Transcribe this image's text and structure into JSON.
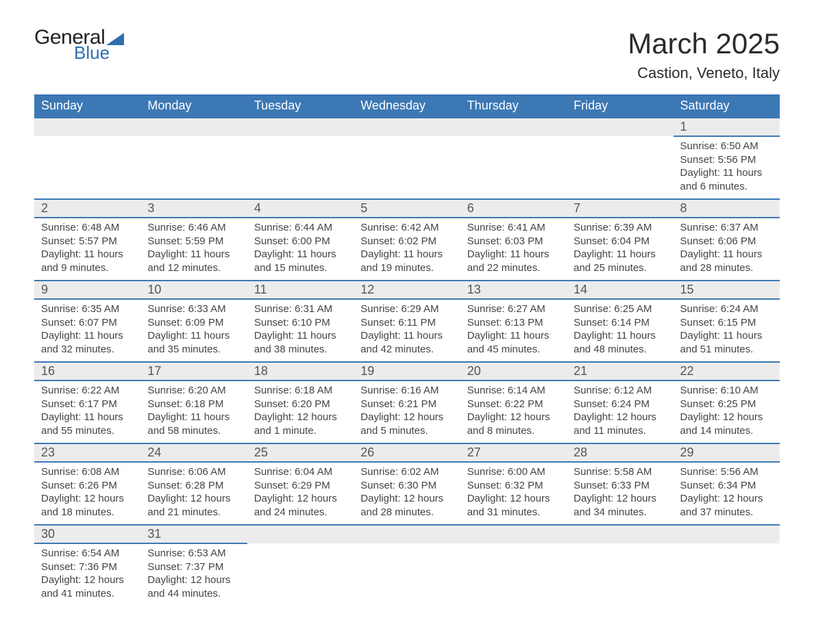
{
  "brand": {
    "text1": "General",
    "text2": "Blue",
    "accent": "#2f6eb0"
  },
  "title": "March 2025",
  "location": "Castion, Veneto, Italy",
  "colors": {
    "header_bg": "#3c78b4",
    "header_text": "#ffffff",
    "daynum_bg": "#ececec",
    "border": "#3c78b4",
    "body_text": "#444444",
    "title_text": "#2b2b2b",
    "background": "#ffffff"
  },
  "fonts": {
    "title_size_pt": 32,
    "location_size_pt": 17,
    "header_size_pt": 14,
    "daynum_size_pt": 14,
    "body_size_pt": 11
  },
  "weekday_labels": [
    "Sunday",
    "Monday",
    "Tuesday",
    "Wednesday",
    "Thursday",
    "Friday",
    "Saturday"
  ],
  "weeks": [
    [
      null,
      null,
      null,
      null,
      null,
      null,
      {
        "n": "1",
        "sunrise": "6:50 AM",
        "sunset": "5:56 PM",
        "daylight": "11 hours and 6 minutes."
      }
    ],
    [
      {
        "n": "2",
        "sunrise": "6:48 AM",
        "sunset": "5:57 PM",
        "daylight": "11 hours and 9 minutes."
      },
      {
        "n": "3",
        "sunrise": "6:46 AM",
        "sunset": "5:59 PM",
        "daylight": "11 hours and 12 minutes."
      },
      {
        "n": "4",
        "sunrise": "6:44 AM",
        "sunset": "6:00 PM",
        "daylight": "11 hours and 15 minutes."
      },
      {
        "n": "5",
        "sunrise": "6:42 AM",
        "sunset": "6:02 PM",
        "daylight": "11 hours and 19 minutes."
      },
      {
        "n": "6",
        "sunrise": "6:41 AM",
        "sunset": "6:03 PM",
        "daylight": "11 hours and 22 minutes."
      },
      {
        "n": "7",
        "sunrise": "6:39 AM",
        "sunset": "6:04 PM",
        "daylight": "11 hours and 25 minutes."
      },
      {
        "n": "8",
        "sunrise": "6:37 AM",
        "sunset": "6:06 PM",
        "daylight": "11 hours and 28 minutes."
      }
    ],
    [
      {
        "n": "9",
        "sunrise": "6:35 AM",
        "sunset": "6:07 PM",
        "daylight": "11 hours and 32 minutes."
      },
      {
        "n": "10",
        "sunrise": "6:33 AM",
        "sunset": "6:09 PM",
        "daylight": "11 hours and 35 minutes."
      },
      {
        "n": "11",
        "sunrise": "6:31 AM",
        "sunset": "6:10 PM",
        "daylight": "11 hours and 38 minutes."
      },
      {
        "n": "12",
        "sunrise": "6:29 AM",
        "sunset": "6:11 PM",
        "daylight": "11 hours and 42 minutes."
      },
      {
        "n": "13",
        "sunrise": "6:27 AM",
        "sunset": "6:13 PM",
        "daylight": "11 hours and 45 minutes."
      },
      {
        "n": "14",
        "sunrise": "6:25 AM",
        "sunset": "6:14 PM",
        "daylight": "11 hours and 48 minutes."
      },
      {
        "n": "15",
        "sunrise": "6:24 AM",
        "sunset": "6:15 PM",
        "daylight": "11 hours and 51 minutes."
      }
    ],
    [
      {
        "n": "16",
        "sunrise": "6:22 AM",
        "sunset": "6:17 PM",
        "daylight": "11 hours and 55 minutes."
      },
      {
        "n": "17",
        "sunrise": "6:20 AM",
        "sunset": "6:18 PM",
        "daylight": "11 hours and 58 minutes."
      },
      {
        "n": "18",
        "sunrise": "6:18 AM",
        "sunset": "6:20 PM",
        "daylight": "12 hours and 1 minute."
      },
      {
        "n": "19",
        "sunrise": "6:16 AM",
        "sunset": "6:21 PM",
        "daylight": "12 hours and 5 minutes."
      },
      {
        "n": "20",
        "sunrise": "6:14 AM",
        "sunset": "6:22 PM",
        "daylight": "12 hours and 8 minutes."
      },
      {
        "n": "21",
        "sunrise": "6:12 AM",
        "sunset": "6:24 PM",
        "daylight": "12 hours and 11 minutes."
      },
      {
        "n": "22",
        "sunrise": "6:10 AM",
        "sunset": "6:25 PM",
        "daylight": "12 hours and 14 minutes."
      }
    ],
    [
      {
        "n": "23",
        "sunrise": "6:08 AM",
        "sunset": "6:26 PM",
        "daylight": "12 hours and 18 minutes."
      },
      {
        "n": "24",
        "sunrise": "6:06 AM",
        "sunset": "6:28 PM",
        "daylight": "12 hours and 21 minutes."
      },
      {
        "n": "25",
        "sunrise": "6:04 AM",
        "sunset": "6:29 PM",
        "daylight": "12 hours and 24 minutes."
      },
      {
        "n": "26",
        "sunrise": "6:02 AM",
        "sunset": "6:30 PM",
        "daylight": "12 hours and 28 minutes."
      },
      {
        "n": "27",
        "sunrise": "6:00 AM",
        "sunset": "6:32 PM",
        "daylight": "12 hours and 31 minutes."
      },
      {
        "n": "28",
        "sunrise": "5:58 AM",
        "sunset": "6:33 PM",
        "daylight": "12 hours and 34 minutes."
      },
      {
        "n": "29",
        "sunrise": "5:56 AM",
        "sunset": "6:34 PM",
        "daylight": "12 hours and 37 minutes."
      }
    ],
    [
      {
        "n": "30",
        "sunrise": "6:54 AM",
        "sunset": "7:36 PM",
        "daylight": "12 hours and 41 minutes."
      },
      {
        "n": "31",
        "sunrise": "6:53 AM",
        "sunset": "7:37 PM",
        "daylight": "12 hours and 44 minutes."
      },
      null,
      null,
      null,
      null,
      null
    ]
  ],
  "labels": {
    "sunrise": "Sunrise: ",
    "sunset": "Sunset: ",
    "daylight": "Daylight: "
  }
}
